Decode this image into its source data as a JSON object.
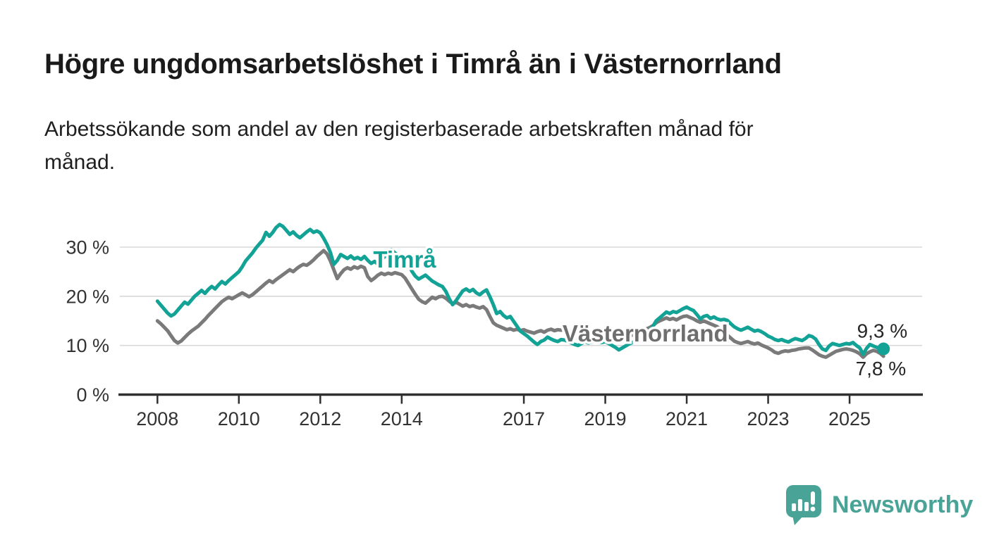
{
  "page": {
    "title": "Högre ungdomsarbetslöshet i Timrå än i Västernorrland",
    "subtitle_lines": [
      "Arbetssökande som andel av den registerbaserade arbetskraften månad för",
      "månad."
    ]
  },
  "branding": {
    "logo_text": "Newsworthy",
    "logo_icon": "bar-chart-speech-bubble-icon",
    "brand_color": "#4aa397"
  },
  "chart_data": {
    "type": "line",
    "x_unit": "monthly",
    "x_start_year": 2008,
    "x_end": "2025-11",
    "ylim": [
      0,
      36
    ],
    "grid": "horizontal",
    "legend_position": "inline-labels",
    "colors": {
      "grid": "#d8d8d8",
      "axis": "#2f2f2f",
      "tick_text": "#333333",
      "end_label_text": "#262626"
    },
    "yticks": [
      {
        "value": 0,
        "label": "0 %"
      },
      {
        "value": 10,
        "label": "10 %"
      },
      {
        "value": 20,
        "label": "20 %"
      },
      {
        "value": 30,
        "label": "30 %"
      }
    ],
    "xticks": [
      {
        "year": 2008,
        "label": "2008"
      },
      {
        "year": 2010,
        "label": "2010"
      },
      {
        "year": 2012,
        "label": "2012"
      },
      {
        "year": 2014,
        "label": "2014"
      },
      {
        "year": 2017,
        "label": "2017"
      },
      {
        "year": 2019,
        "label": "2019"
      },
      {
        "year": 2021,
        "label": "2021"
      },
      {
        "year": 2023,
        "label": "2023"
      },
      {
        "year": 2025,
        "label": "2025"
      }
    ],
    "series": [
      {
        "name": "Timrå",
        "color": "#12a296",
        "label_color": "#12a296",
        "inline_label": {
          "t": 2013.3,
          "v": 27.4
        },
        "end_label": "9,3 %",
        "end_label_position": "above",
        "end_dot": true,
        "values": [
          19.0,
          18.2,
          17.4,
          16.6,
          16.0,
          16.4,
          17.2,
          18.0,
          18.8,
          18.4,
          19.2,
          20.0,
          20.6,
          21.2,
          20.6,
          21.4,
          22.0,
          21.5,
          22.3,
          23.0,
          22.5,
          23.2,
          23.8,
          24.4,
          25.0,
          26.0,
          27.2,
          28.0,
          28.8,
          29.8,
          30.6,
          31.4,
          33.0,
          32.2,
          33.0,
          34.0,
          34.6,
          34.2,
          33.4,
          32.6,
          33.1,
          32.4,
          31.9,
          32.5,
          33.1,
          33.6,
          33.0,
          33.3,
          32.9,
          31.8,
          30.5,
          28.9,
          26.5,
          27.3,
          28.5,
          28.1,
          27.7,
          28.2,
          27.6,
          27.9,
          27.5,
          28.1,
          27.3,
          26.7,
          27.1,
          26.5,
          27.3,
          28.1,
          28.9,
          29.5,
          28.8,
          28.3,
          28.5,
          27.7,
          26.5,
          25.1,
          24.1,
          23.5,
          23.9,
          24.3,
          23.7,
          23.1,
          22.7,
          22.3,
          22.0,
          21.0,
          19.5,
          18.3,
          19.1,
          20.1,
          21.1,
          21.5,
          21.0,
          21.4,
          20.7,
          20.3,
          20.9,
          21.3,
          19.9,
          18.3,
          16.5,
          16.9,
          16.1,
          15.6,
          15.9,
          14.9,
          13.9,
          12.9,
          12.4,
          11.9,
          11.3,
          10.7,
          10.2,
          10.8,
          11.1,
          11.7,
          11.3,
          11.0,
          10.8,
          11.2,
          11.1,
          10.8,
          10.5,
          10.2,
          10.0,
          10.4,
          10.8,
          10.5,
          10.7,
          10.9,
          10.7,
          10.6,
          10.8,
          10.4,
          10.0,
          9.6,
          9.1,
          9.5,
          9.9,
          10.3,
          10.6,
          10.9,
          11.3,
          11.8,
          12.4,
          13.0,
          13.8,
          15.0,
          15.6,
          16.2,
          16.8,
          16.5,
          16.9,
          16.7,
          17.1,
          17.5,
          17.8,
          17.4,
          17.1,
          16.3,
          15.4,
          15.9,
          16.1,
          15.5,
          15.8,
          15.4,
          15.2,
          15.3,
          15.1,
          14.4,
          13.8,
          13.4,
          13.1,
          13.4,
          13.7,
          13.3,
          12.9,
          13.1,
          12.8,
          12.4,
          11.9,
          11.6,
          11.2,
          11.0,
          11.2,
          10.9,
          10.7,
          11.1,
          11.4,
          11.2,
          11.0,
          11.4,
          12.0,
          11.8,
          11.3,
          10.2,
          9.3,
          9.0,
          9.9,
          10.4,
          10.2,
          10.0,
          10.2,
          10.4,
          10.3,
          10.6,
          10.0,
          9.5,
          8.2,
          9.4,
          10.2,
          9.9,
          9.6,
          9.4,
          9.3
        ]
      },
      {
        "name": "Västernorrland",
        "color": "#7a7a7a",
        "label_color": "#6e6e6e",
        "inline_label": {
          "t": 2017.95,
          "v": 12.4
        },
        "end_label": "7,8 %",
        "end_label_position": "below",
        "end_dot": false,
        "values": [
          15.0,
          14.4,
          13.7,
          13.0,
          12.0,
          11.0,
          10.5,
          10.9,
          11.6,
          12.3,
          12.9,
          13.4,
          13.9,
          14.6,
          15.3,
          16.1,
          16.8,
          17.5,
          18.2,
          18.9,
          19.4,
          19.8,
          19.5,
          19.9,
          20.3,
          20.7,
          20.3,
          19.9,
          20.3,
          20.9,
          21.5,
          22.1,
          22.7,
          23.2,
          22.8,
          23.4,
          23.9,
          24.4,
          24.9,
          25.4,
          25.0,
          25.6,
          26.1,
          26.5,
          26.3,
          26.8,
          27.4,
          28.1,
          28.7,
          29.3,
          28.6,
          27.2,
          25.4,
          23.6,
          24.6,
          25.4,
          25.8,
          25.5,
          26.0,
          25.7,
          26.1,
          25.8,
          24.0,
          23.2,
          23.7,
          24.3,
          24.7,
          24.4,
          24.7,
          24.5,
          24.8,
          24.6,
          24.4,
          23.7,
          22.6,
          21.5,
          20.4,
          19.4,
          18.9,
          18.6,
          19.2,
          19.8,
          19.5,
          19.9,
          20.0,
          19.6,
          19.0,
          18.5,
          18.8,
          18.4,
          18.0,
          18.3,
          17.9,
          18.1,
          17.8,
          17.6,
          17.9,
          17.3,
          15.9,
          14.6,
          14.1,
          13.8,
          13.5,
          13.2,
          13.4,
          13.1,
          13.3,
          13.0,
          13.2,
          12.9,
          12.7,
          12.5,
          12.8,
          13.0,
          12.7,
          13.1,
          13.3,
          13.0,
          13.2,
          13.1,
          13.3,
          13.0,
          12.8,
          13.1,
          12.9,
          12.6,
          12.8,
          12.5,
          12.7,
          12.4,
          12.2,
          12.0,
          11.8,
          11.5,
          11.7,
          11.4,
          11.2,
          11.5,
          11.7,
          11.9,
          12.1,
          12.4,
          12.7,
          13.0,
          13.3,
          13.6,
          14.0,
          14.6,
          15.0,
          15.3,
          15.6,
          15.3,
          15.5,
          15.2,
          15.6,
          15.9,
          16.0,
          15.7,
          15.4,
          15.0,
          14.7,
          15.0,
          14.7,
          14.4,
          14.1,
          13.8,
          13.3,
          12.7,
          12.1,
          11.5,
          10.9,
          10.6,
          10.4,
          10.6,
          10.8,
          10.5,
          10.3,
          10.5,
          10.1,
          9.8,
          9.5,
          9.1,
          8.6,
          8.4,
          8.7,
          8.9,
          8.8,
          9.0,
          9.1,
          9.3,
          9.4,
          9.5,
          9.5,
          9.1,
          8.6,
          8.1,
          7.8,
          7.6,
          8.0,
          8.4,
          8.8,
          9.0,
          9.2,
          9.3,
          9.2,
          9.0,
          8.7,
          8.3,
          7.6,
          8.3,
          8.7,
          9.0,
          8.8,
          8.4,
          7.8
        ]
      }
    ]
  }
}
